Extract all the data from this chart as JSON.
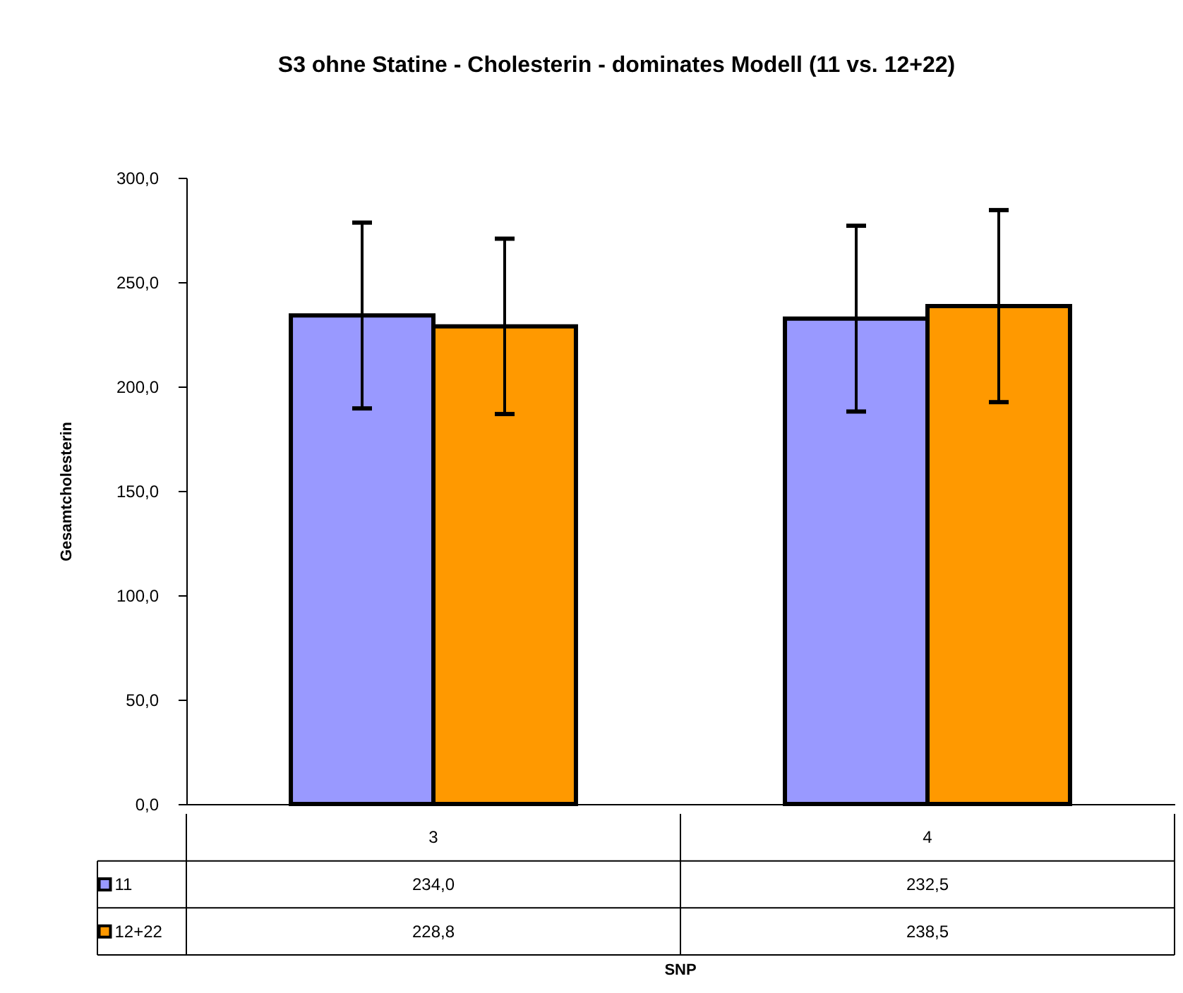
{
  "chart_data": {
    "type": "bar",
    "title": "S3 ohne Statine - Cholesterin - dominates Modell (11 vs. 12+22)",
    "annotations": [
      "SNP"
    ],
    "ylabel": "Gesamtcholesterin",
    "categories": [
      "3",
      "4"
    ],
    "series": [
      {
        "name": "11",
        "color": "#9999ff",
        "values": [
          234.0,
          232.5
        ],
        "errors": [
          44.5,
          44.5
        ],
        "value_labels": [
          "234,0",
          "232,5"
        ]
      },
      {
        "name": "12+22",
        "color": "#ff9900",
        "values": [
          228.8,
          238.5
        ],
        "errors": [
          42,
          46
        ],
        "value_labels": [
          "228,8",
          "238,5"
        ]
      }
    ],
    "ylim": [
      0,
      300
    ],
    "yticks": [
      {
        "value": 0,
        "label": "0,0"
      },
      {
        "value": 50,
        "label": "50,0"
      },
      {
        "value": 100,
        "label": "100,0"
      },
      {
        "value": 150,
        "label": "150,0"
      },
      {
        "value": 200,
        "label": "200,0"
      },
      {
        "value": 250,
        "label": "250,0"
      },
      {
        "value": 300,
        "label": "300,0"
      }
    ],
    "legend": "bottom",
    "grid": false
  }
}
